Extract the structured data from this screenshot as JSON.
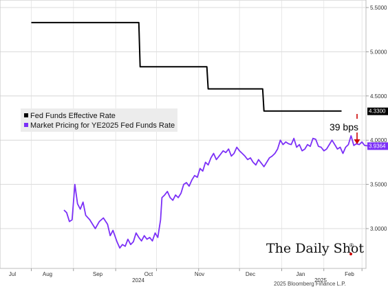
{
  "chart_data": {
    "type": "line",
    "yaxis": {
      "ticks": [
        "5.5000",
        "5.0000",
        "4.5000",
        "4.0000",
        "3.5000",
        "3.0000"
      ],
      "tick_values": [
        5.5,
        5.0,
        4.5,
        4.0,
        3.5,
        3.0
      ],
      "position": "right"
    },
    "xaxis": {
      "months": [
        "Jul",
        "Aug",
        "Sep",
        "Oct",
        "Nov",
        "Dec",
        "Jan",
        "Feb"
      ],
      "years": [
        "2024",
        "2025"
      ]
    },
    "grid": true,
    "legend_position": "top-left",
    "series": [
      {
        "name": "Fed Funds Effective Rate",
        "color": "#000000",
        "last_value_label": "4.3300",
        "points": [
          [
            "2024-07-01",
            5.33
          ],
          [
            "2024-09-18",
            5.33
          ],
          [
            "2024-09-19",
            4.83
          ],
          [
            "2024-11-07",
            4.83
          ],
          [
            "2024-11-08",
            4.58
          ],
          [
            "2024-12-18",
            4.58
          ],
          [
            "2024-12-19",
            4.33
          ],
          [
            "2025-02-14",
            4.33
          ]
        ]
      },
      {
        "name": "Market Pricing for YE2025 Fed Funds Rate",
        "color": "#7b2ff7",
        "last_value_label": "3.9364",
        "points": [
          [
            "2024-07-25",
            3.21
          ],
          [
            "2024-07-27",
            3.18
          ],
          [
            "2024-07-29",
            3.08
          ],
          [
            "2024-07-31",
            3.1
          ],
          [
            "2024-08-02",
            3.5
          ],
          [
            "2024-08-04",
            3.28
          ],
          [
            "2024-08-06",
            3.22
          ],
          [
            "2024-08-08",
            3.3
          ],
          [
            "2024-08-10",
            3.15
          ],
          [
            "2024-08-13",
            3.1
          ],
          [
            "2024-08-15",
            3.05
          ],
          [
            "2024-08-17",
            3.0
          ],
          [
            "2024-08-20",
            3.08
          ],
          [
            "2024-08-23",
            3.12
          ],
          [
            "2024-08-26",
            3.05
          ],
          [
            "2024-08-28",
            2.92
          ],
          [
            "2024-08-30",
            2.98
          ],
          [
            "2024-09-02",
            2.85
          ],
          [
            "2024-09-04",
            2.78
          ],
          [
            "2024-09-06",
            2.82
          ],
          [
            "2024-09-08",
            2.8
          ],
          [
            "2024-09-10",
            2.88
          ],
          [
            "2024-09-12",
            2.82
          ],
          [
            "2024-09-14",
            2.85
          ],
          [
            "2024-09-16",
            2.95
          ],
          [
            "2024-09-18",
            2.9
          ],
          [
            "2024-09-20",
            2.86
          ],
          [
            "2024-09-22",
            2.92
          ],
          [
            "2024-09-24",
            2.88
          ],
          [
            "2024-09-26",
            2.9
          ],
          [
            "2024-09-28",
            2.86
          ],
          [
            "2024-09-30",
            2.95
          ],
          [
            "2024-10-02",
            2.9
          ],
          [
            "2024-10-04",
            3.1
          ],
          [
            "2024-10-05",
            3.35
          ],
          [
            "2024-10-07",
            3.38
          ],
          [
            "2024-10-09",
            3.42
          ],
          [
            "2024-10-11",
            3.35
          ],
          [
            "2024-10-13",
            3.32
          ],
          [
            "2024-10-15",
            3.38
          ],
          [
            "2024-10-17",
            3.35
          ],
          [
            "2024-10-19",
            3.4
          ],
          [
            "2024-10-21",
            3.5
          ],
          [
            "2024-10-23",
            3.52
          ],
          [
            "2024-10-25",
            3.48
          ],
          [
            "2024-10-27",
            3.55
          ],
          [
            "2024-10-29",
            3.6
          ],
          [
            "2024-10-31",
            3.58
          ],
          [
            "2024-11-02",
            3.68
          ],
          [
            "2024-11-04",
            3.65
          ],
          [
            "2024-11-06",
            3.75
          ],
          [
            "2024-11-08",
            3.72
          ],
          [
            "2024-11-10",
            3.8
          ],
          [
            "2024-11-12",
            3.85
          ],
          [
            "2024-11-14",
            3.78
          ],
          [
            "2024-11-16",
            3.82
          ],
          [
            "2024-11-19",
            3.88
          ],
          [
            "2024-11-21",
            3.86
          ],
          [
            "2024-11-23",
            3.9
          ],
          [
            "2024-11-25",
            3.82
          ],
          [
            "2024-11-27",
            3.85
          ],
          [
            "2024-11-29",
            3.92
          ],
          [
            "2024-12-01",
            3.88
          ],
          [
            "2024-12-03",
            3.85
          ],
          [
            "2024-12-05",
            3.82
          ],
          [
            "2024-12-07",
            3.78
          ],
          [
            "2024-12-09",
            3.8
          ],
          [
            "2024-12-11",
            3.75
          ],
          [
            "2024-12-13",
            3.72
          ],
          [
            "2024-12-15",
            3.78
          ],
          [
            "2024-12-17",
            3.74
          ],
          [
            "2024-12-19",
            3.7
          ],
          [
            "2024-12-21",
            3.75
          ],
          [
            "2024-12-23",
            3.8
          ],
          [
            "2024-12-25",
            3.82
          ],
          [
            "2024-12-27",
            3.85
          ],
          [
            "2024-12-29",
            3.9
          ],
          [
            "2024-12-31",
            4.0
          ],
          [
            "2025-01-02",
            3.95
          ],
          [
            "2025-01-04",
            3.98
          ],
          [
            "2025-01-06",
            3.96
          ],
          [
            "2025-01-08",
            3.95
          ],
          [
            "2025-01-10",
            4.02
          ],
          [
            "2025-01-12",
            3.92
          ],
          [
            "2025-01-14",
            3.95
          ],
          [
            "2025-01-16",
            3.88
          ],
          [
            "2025-01-18",
            3.9
          ],
          [
            "2025-01-20",
            3.95
          ],
          [
            "2025-01-22",
            3.93
          ],
          [
            "2025-01-24",
            4.02
          ],
          [
            "2025-01-26",
            4.01
          ],
          [
            "2025-01-28",
            3.93
          ],
          [
            "2025-01-30",
            3.92
          ],
          [
            "2025-02-01",
            3.88
          ],
          [
            "2025-02-03",
            3.9
          ],
          [
            "2025-02-05",
            3.95
          ],
          [
            "2025-02-07",
            4.0
          ],
          [
            "2025-02-09",
            3.95
          ],
          [
            "2025-02-11",
            3.9
          ],
          [
            "2025-02-13",
            3.92
          ],
          [
            "2025-02-15",
            3.85
          ],
          [
            "2025-02-17",
            3.92
          ],
          [
            "2025-02-19",
            3.95
          ],
          [
            "2025-02-21",
            4.05
          ],
          [
            "2025-02-23",
            3.94
          ],
          [
            "2025-02-25",
            3.96
          ],
          [
            "2025-02-27",
            3.95
          ],
          [
            "2025-03-01",
            3.98
          ],
          [
            "2025-03-03",
            3.94
          ],
          [
            "2025-03-05",
            3.9364
          ]
        ]
      }
    ],
    "annotation": {
      "text": "39 bps",
      "color": "#cc0000"
    }
  },
  "source": "2025 Bloomberg Finance L.P.",
  "brand": "The Daily Shot",
  "brand_mark": "®"
}
